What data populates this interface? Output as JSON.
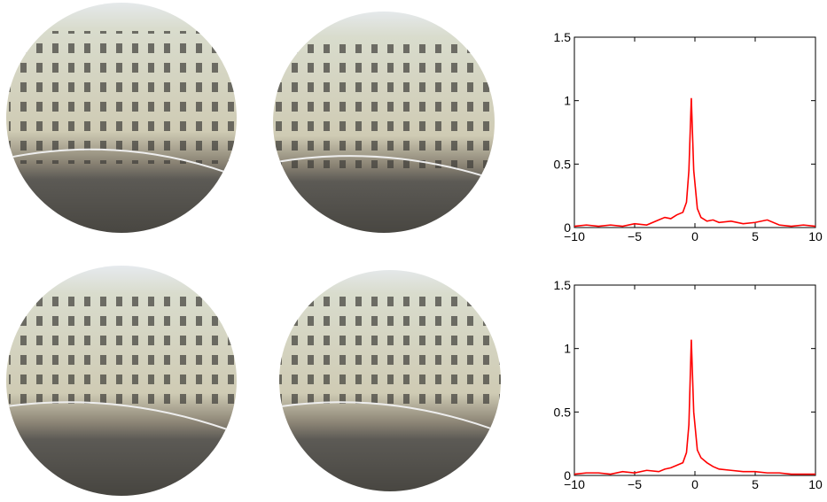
{
  "chart_data": [
    {
      "type": "line",
      "x": [
        -10,
        -9,
        -8,
        -7,
        -6,
        -5,
        -4,
        -3,
        -2.5,
        -2,
        -1.5,
        -1,
        -0.7,
        -0.5,
        -0.3,
        -0.1,
        0.2,
        0.5,
        1,
        1.5,
        2,
        3,
        4,
        5,
        6,
        7,
        8,
        9,
        10
      ],
      "series": [
        {
          "color": "#ff0000",
          "values": [
            0.01,
            0.02,
            0.01,
            0.02,
            0.01,
            0.03,
            0.02,
            0.06,
            0.08,
            0.07,
            0.1,
            0.12,
            0.2,
            0.45,
            1.02,
            0.45,
            0.15,
            0.08,
            0.05,
            0.06,
            0.04,
            0.05,
            0.03,
            0.04,
            0.06,
            0.02,
            0.01,
            0.02,
            0.01
          ]
        }
      ],
      "xlim": [
        -10,
        10
      ],
      "xticks": [
        {
          "value": -10,
          "label": "−10"
        },
        {
          "value": -5,
          "label": "−5"
        },
        0,
        5,
        10
      ],
      "ylim": [
        0,
        1.5
      ],
      "yticks": [
        0,
        0.5,
        1,
        1.5
      ]
    },
    {
      "type": "line",
      "x": [
        -10,
        -9,
        -8,
        -7,
        -6,
        -5,
        -4,
        -3,
        -2.5,
        -2,
        -1.5,
        -1,
        -0.7,
        -0.5,
        -0.3,
        -0.1,
        0.2,
        0.5,
        1,
        1.5,
        2,
        3,
        4,
        5,
        6,
        7,
        8,
        9,
        10
      ],
      "series": [
        {
          "color": "#ff0000",
          "values": [
            0.01,
            0.02,
            0.02,
            0.01,
            0.03,
            0.02,
            0.04,
            0.03,
            0.05,
            0.06,
            0.08,
            0.1,
            0.18,
            0.4,
            1.07,
            0.5,
            0.2,
            0.14,
            0.1,
            0.07,
            0.05,
            0.04,
            0.03,
            0.03,
            0.02,
            0.02,
            0.01,
            0.01,
            0.01
          ]
        }
      ],
      "xlim": [
        -10,
        10
      ],
      "xticks": [
        {
          "value": -10,
          "label": "−10"
        },
        {
          "value": -5,
          "label": "−5"
        },
        0,
        5,
        10
      ],
      "ylim": [
        0,
        1.5
      ],
      "yticks": [
        0,
        0.5,
        1,
        1.5
      ]
    }
  ]
}
